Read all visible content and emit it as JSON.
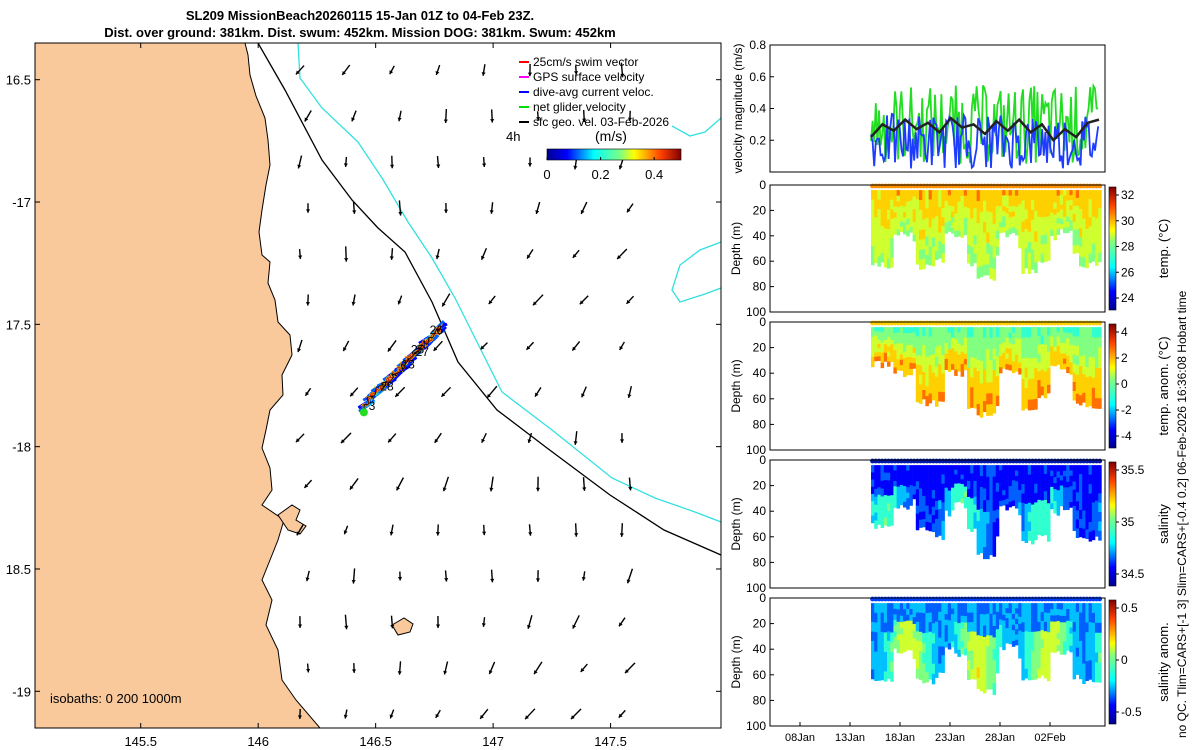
{
  "title": {
    "line1": "SL209 MissionBeach20260115 15-Jan 01Z to 04-Feb 23Z.",
    "line2": "Dist. over ground: 381km. Dist. swum: 452km. Mission DOG: 381km. Swum: 452km"
  },
  "colors": {
    "land": "#f9c89b",
    "isobath200": "#000000",
    "isobath1000": "#33e0e0",
    "track": "#0033cc"
  },
  "chart_data": [
    {
      "type": "map",
      "name": "glider track map",
      "xlim": [
        145.05,
        147.97
      ],
      "ylim": [
        -19.15,
        -16.35
      ],
      "xticks": [
        145.5,
        146,
        146.5,
        147,
        147.5
      ],
      "xtick_labels": [
        "145.5",
        "146",
        "146.5",
        "147",
        "147.5"
      ],
      "yticks": [
        -16.5,
        -17,
        -17.5,
        -18,
        -18.5,
        -19
      ],
      "ytick_labels": [
        "16.5",
        "-17",
        "17.5",
        "-18",
        "18.5",
        "-19"
      ],
      "legend": [
        {
          "label": "25cm/s swim vector",
          "color": "#ff0000"
        },
        {
          "label": "GPS surface velocity",
          "color": "#ff00ff"
        },
        {
          "label": "dive-avg current veloc.",
          "color": "#0000ff"
        },
        {
          "label": "net glider velocity",
          "color": "#00dd00"
        },
        {
          "label": "sfc geo. vel. 03-Feb-2026",
          "color": "#000000"
        }
      ],
      "vector_scale_label": "4h",
      "colorbar": {
        "label": "(m/s)",
        "ticks": [
          "0",
          "0.2",
          "0.4"
        ],
        "range": [
          0,
          0.5
        ]
      },
      "isobath_text": "isobaths: 0   200  1000m",
      "day_labels": [
        {
          "text": "26",
          "lon": 146.73,
          "lat": -17.54
        },
        {
          "text": "25",
          "lon": 146.65,
          "lat": -17.62
        },
        {
          "text": "27",
          "lon": 146.67,
          "lat": -17.63
        },
        {
          "text": "13",
          "lon": 146.61,
          "lat": -17.68
        },
        {
          "text": "28",
          "lon": 146.52,
          "lat": -17.77
        },
        {
          "text": "3",
          "lon": 146.47,
          "lat": -17.85
        }
      ]
    },
    {
      "type": "line",
      "name": "velocity magnitude",
      "ylabel": "velocity magnitude (m/s)",
      "ylim": [
        0,
        0.8
      ],
      "yticks": [
        "0.8",
        "0.6",
        "0.4",
        "0.2"
      ],
      "series": [
        {
          "name": "net glider velocity",
          "color": "#22dd22"
        },
        {
          "name": "dive-avg current",
          "color": "#1e3cff"
        },
        {
          "name": "smoothed",
          "color": "#222222",
          "values": [
            0.22,
            0.3,
            0.26,
            0.33,
            0.27,
            0.31,
            0.25,
            0.34,
            0.28,
            0.3,
            0.24,
            0.32,
            0.26,
            0.33,
            0.25,
            0.3,
            0.2,
            0.27,
            0.22,
            0.31,
            0.33
          ]
        }
      ]
    },
    {
      "type": "heatmap",
      "name": "temperature section",
      "ylabel": "Depth (m)",
      "yticks": [
        "0",
        "20",
        "40",
        "60",
        "80",
        "100"
      ],
      "colorbar": {
        "label": "temp. (°C)",
        "ticks": [
          "32",
          "30",
          "28",
          "26",
          "24"
        ]
      }
    },
    {
      "type": "heatmap",
      "name": "temperature anomaly section",
      "ylabel": "Depth (m)",
      "yticks": [
        "0",
        "20",
        "40",
        "60",
        "80",
        "100"
      ],
      "colorbar": {
        "label": "temp. anom. (°C)",
        "ticks": [
          "4",
          "2",
          "0",
          "-2",
          "-4"
        ]
      }
    },
    {
      "type": "heatmap",
      "name": "salinity section",
      "ylabel": "Depth (m)",
      "yticks": [
        "0",
        "20",
        "40",
        "60",
        "80",
        "100"
      ],
      "colorbar": {
        "label": "salinity",
        "ticks": [
          "35.5",
          "35",
          "34.5"
        ]
      }
    },
    {
      "type": "heatmap",
      "name": "salinity anomaly section",
      "ylabel": "Depth (m)",
      "yticks": [
        "0",
        "20",
        "40",
        "60",
        "80",
        "100"
      ],
      "xticks": [
        "08Jan",
        "13Jan",
        "18Jan",
        "23Jan",
        "28Jan",
        "02Feb"
      ],
      "colorbar": {
        "label": "salinity anom.",
        "ticks": [
          "0.5",
          "0",
          "-0.5"
        ]
      }
    }
  ],
  "side_note": "no QC. Tlim=CARS+[-1 3] Slim=CARS+[-0.4 0.2] 06-Feb-2026 16:36:08 Hobart time"
}
